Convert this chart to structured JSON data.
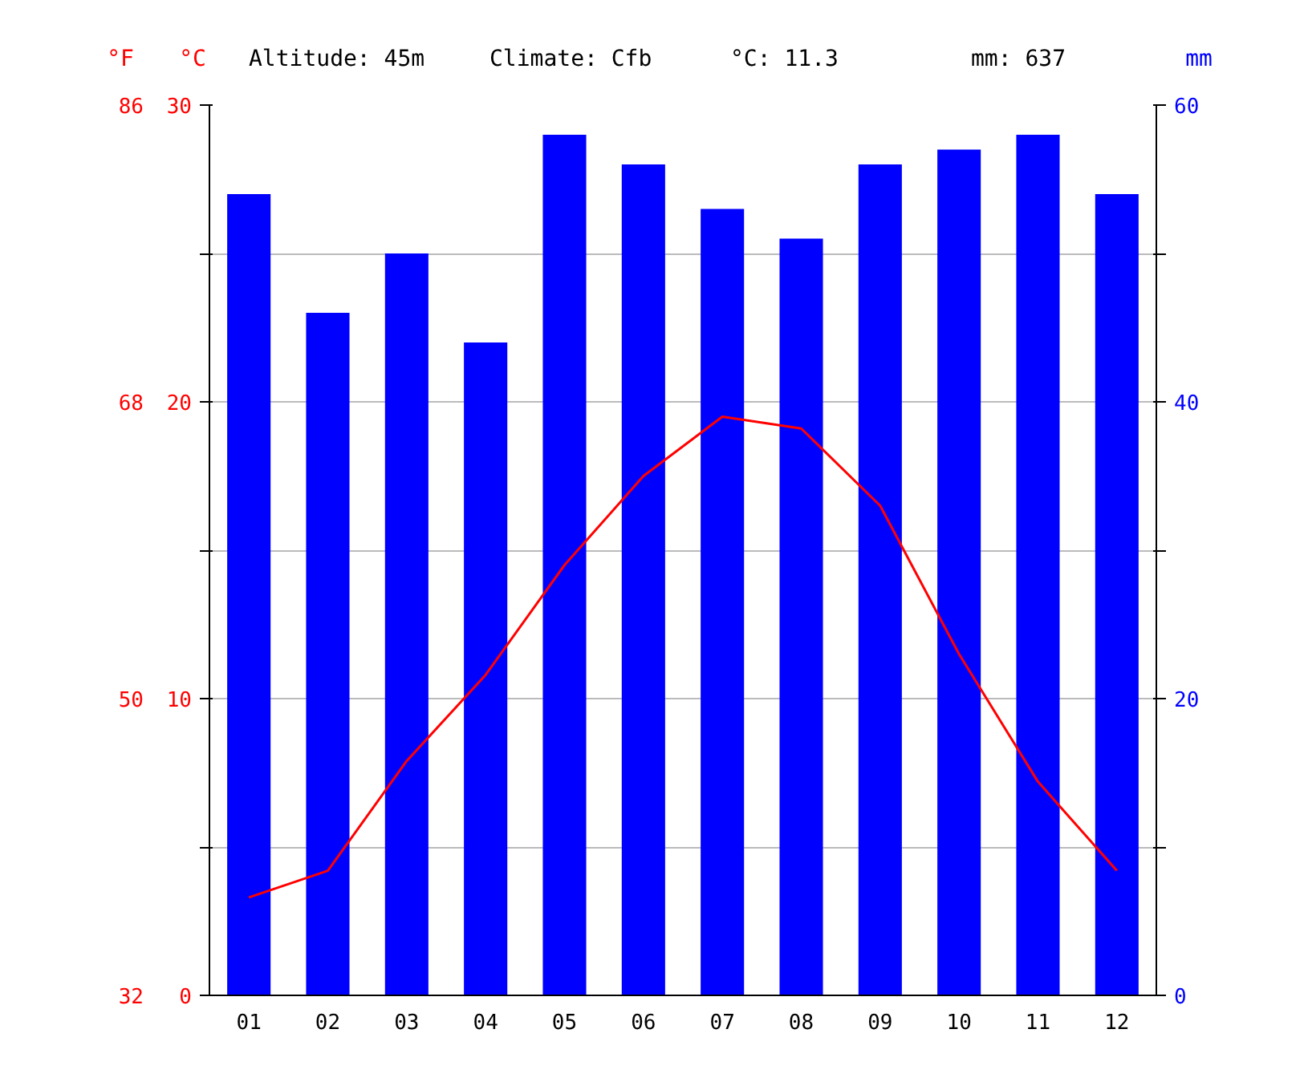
{
  "chart_data": {
    "type": "bar",
    "categories": [
      "01",
      "02",
      "03",
      "04",
      "05",
      "06",
      "07",
      "08",
      "09",
      "10",
      "11",
      "12"
    ],
    "series": [
      {
        "axis": "y2",
        "color": "#0000ff",
        "values": [
          54,
          46,
          50,
          44,
          58,
          56,
          53,
          51,
          56,
          57,
          58,
          54
        ]
      },
      {
        "type": "line",
        "axis": "y",
        "color": "#ff0000",
        "values": [
          3.3,
          4.2,
          7.9,
          10.8,
          14.5,
          17.5,
          19.5,
          19.1,
          16.5,
          11.5,
          7.2,
          4.2
        ]
      }
    ],
    "ylabel": "°C",
    "y2label": "mm",
    "y3label": "°F",
    "ylim": [
      0,
      30
    ],
    "yticks": [
      0,
      {
        "value": 5,
        "label": null
      },
      10,
      {
        "value": 15,
        "label": null
      },
      20,
      {
        "value": 25,
        "label": null
      },
      30
    ],
    "y2lim": [
      0,
      60
    ],
    "y2ticks": [
      0,
      {
        "value": 10,
        "label": null
      },
      20,
      {
        "value": 30,
        "label": null
      },
      40,
      {
        "value": 50,
        "label": null
      },
      60
    ],
    "y3lim": [
      32,
      86
    ],
    "y3ticks": [
      32,
      50,
      68,
      86
    ],
    "annotations": [
      "Altitude: 45m",
      "Climate: Cfb",
      "°C: 11.3",
      "mm: 637"
    ],
    "grid": "y",
    "marker": "none",
    "line_style": "solid"
  }
}
